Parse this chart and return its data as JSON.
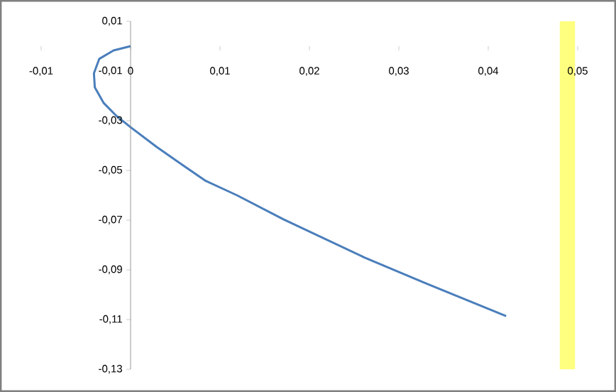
{
  "chart_data": {
    "type": "line",
    "x": [
      0,
      -0.0019,
      -0.0035,
      -0.0041,
      -0.004,
      -0.003,
      -0.0016,
      0,
      0.0029,
      0.0052,
      0.0084,
      0.0119,
      0.0171,
      0.0262,
      0.033,
      0.042
    ],
    "series": [
      {
        "color": "#4a7ebb",
        "values": [
          0,
          -0.0017,
          -0.0051,
          -0.0109,
          -0.0166,
          -0.0229,
          -0.028,
          -0.0326,
          -0.0405,
          -0.0463,
          -0.0542,
          -0.06,
          -0.0697,
          -0.0851,
          -0.0954,
          -0.1086
        ]
      }
    ],
    "xlim": [
      -0.01,
      0.05
    ],
    "ylim": [
      -0.13,
      0.01
    ],
    "xticks": [
      {
        "value": -0.01,
        "label": "-0,01"
      },
      {
        "value": 0,
        "label": "0"
      },
      {
        "value": 0.01,
        "label": "0,01"
      },
      {
        "value": 0.02,
        "label": "0,02"
      },
      {
        "value": 0.03,
        "label": "0,03"
      },
      {
        "value": 0.04,
        "label": "0,04"
      },
      {
        "value": 0.05,
        "label": "0,05"
      }
    ],
    "yticks": [
      {
        "value": 0.01,
        "label": "0,01"
      },
      {
        "value": -0.01,
        "label": "-0,01"
      },
      {
        "value": -0.03,
        "label": "-0,03"
      },
      {
        "value": -0.05,
        "label": "-0,05"
      },
      {
        "value": -0.07,
        "label": "-0,07"
      },
      {
        "value": -0.09,
        "label": "-0,09"
      },
      {
        "value": -0.11,
        "label": "-0,11"
      },
      {
        "value": -0.13,
        "label": "-0,13"
      }
    ],
    "bands": [
      {
        "axis": "x",
        "from": 0.048,
        "to": 0.0497,
        "color": "#ffff7f"
      }
    ],
    "grid": false,
    "marker": "none",
    "line_style": "solid"
  }
}
